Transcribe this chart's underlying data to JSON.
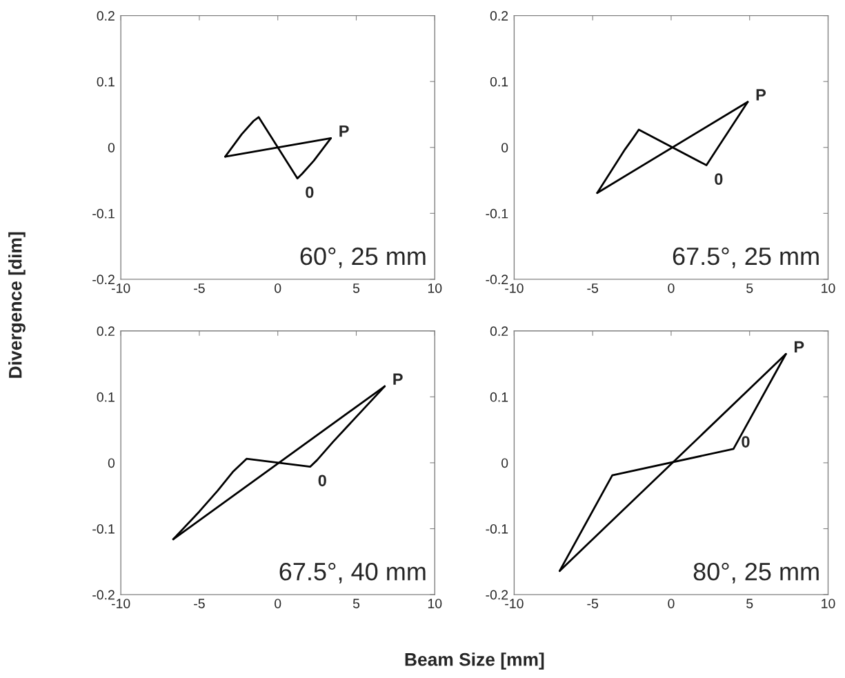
{
  "chart_data": [
    {
      "type": "line",
      "ylabel": "Divergence [dim]",
      "annotations": [
        "60°, 25 mm",
        {
          "text": "P",
          "x": 3.38,
          "y": 0.014
        },
        {
          "text": "0",
          "x": 1.25,
          "y": -0.047
        }
      ],
      "series": [
        {
          "color": "#000000",
          "x": [
            -3.35,
            -2.3,
            -1.55,
            -1.22,
            1.25,
            1.55,
            2.3,
            3.38
          ],
          "values": [
            -0.014,
            0.02,
            0.04,
            0.046,
            -0.047,
            -0.04,
            -0.02,
            0.014
          ]
        },
        {
          "color": "#000000",
          "x": [
            -3.35,
            3.38
          ],
          "values": [
            -0.014,
            0.014
          ]
        }
      ],
      "xlim": [
        -10,
        10
      ],
      "ylim": [
        -0.2,
        0.2
      ],
      "xticks": [
        -10,
        -5,
        0,
        5,
        10
      ],
      "yticks": [
        -0.2,
        -0.1,
        0,
        0.1,
        0.2
      ],
      "marker": "none",
      "line_style": "solid",
      "grid": false
    },
    {
      "type": "line",
      "annotations": [
        "67.5°, 25 mm",
        {
          "text": "P",
          "x": 4.88,
          "y": 0.069
        },
        {
          "text": "0",
          "x": 2.25,
          "y": -0.027
        }
      ],
      "series": [
        {
          "color": "#000000",
          "x": [
            -4.71,
            -2.94,
            -2.43,
            -2.06,
            2.25,
            2.79,
            4.88
          ],
          "values": [
            -0.069,
            -0.003,
            0.014,
            0.027,
            -0.027,
            -0.007,
            0.069
          ]
        },
        {
          "color": "#000000",
          "x": [
            -4.71,
            4.88
          ],
          "values": [
            -0.069,
            0.069
          ]
        }
      ],
      "xlim": [
        -10,
        10
      ],
      "ylim": [
        -0.2,
        0.2
      ],
      "xticks": [
        -10,
        -5,
        0,
        5,
        10
      ],
      "yticks": [
        -0.2,
        -0.1,
        0,
        0.1,
        0.2
      ],
      "marker": "none",
      "line_style": "solid",
      "grid": false
    },
    {
      "type": "line",
      "xlabel": "Beam Size [mm]",
      "annotations": [
        "67.5°, 40 mm",
        {
          "text": "P",
          "x": 6.81,
          "y": 0.116
        },
        {
          "text": "0",
          "x": 2.06,
          "y": -0.006
        }
      ],
      "series": [
        {
          "color": "#000000",
          "x": [
            -6.66,
            -5.0,
            -3.82,
            -2.87,
            -1.99,
            2.06,
            2.5,
            3.53,
            6.81
          ],
          "values": [
            -0.116,
            -0.074,
            -0.042,
            -0.014,
            0.006,
            -0.006,
            0.004,
            0.032,
            0.116
          ]
        },
        {
          "color": "#000000",
          "x": [
            -6.66,
            6.81
          ],
          "values": [
            -0.116,
            0.116
          ]
        }
      ],
      "xlim": [
        -10,
        10
      ],
      "ylim": [
        -0.2,
        0.2
      ],
      "xticks": [
        -10,
        -5,
        0,
        5,
        10
      ],
      "yticks": [
        -0.2,
        -0.1,
        0,
        0.1,
        0.2
      ],
      "marker": "none",
      "line_style": "solid",
      "grid": false
    },
    {
      "type": "line",
      "annotations": [
        "80°, 25 mm",
        {
          "text": "P",
          "x": 7.31,
          "y": 0.165
        },
        {
          "text": "0",
          "x": 3.97,
          "y": 0.021
        }
      ],
      "series": [
        {
          "color": "#000000",
          "x": [
            -7.1,
            -3.75,
            3.97,
            7.31
          ],
          "values": [
            -0.164,
            -0.019,
            0.021,
            0.165
          ]
        },
        {
          "color": "#000000",
          "x": [
            -7.1,
            7.31
          ],
          "values": [
            -0.164,
            0.165
          ]
        }
      ],
      "xlim": [
        -10,
        10
      ],
      "ylim": [
        -0.2,
        0.2
      ],
      "xticks": [
        -10,
        -5,
        0,
        5,
        10
      ],
      "yticks": [
        -0.2,
        -0.1,
        0,
        0.1,
        0.2
      ],
      "marker": "none",
      "line_style": "solid",
      "grid": false
    }
  ]
}
